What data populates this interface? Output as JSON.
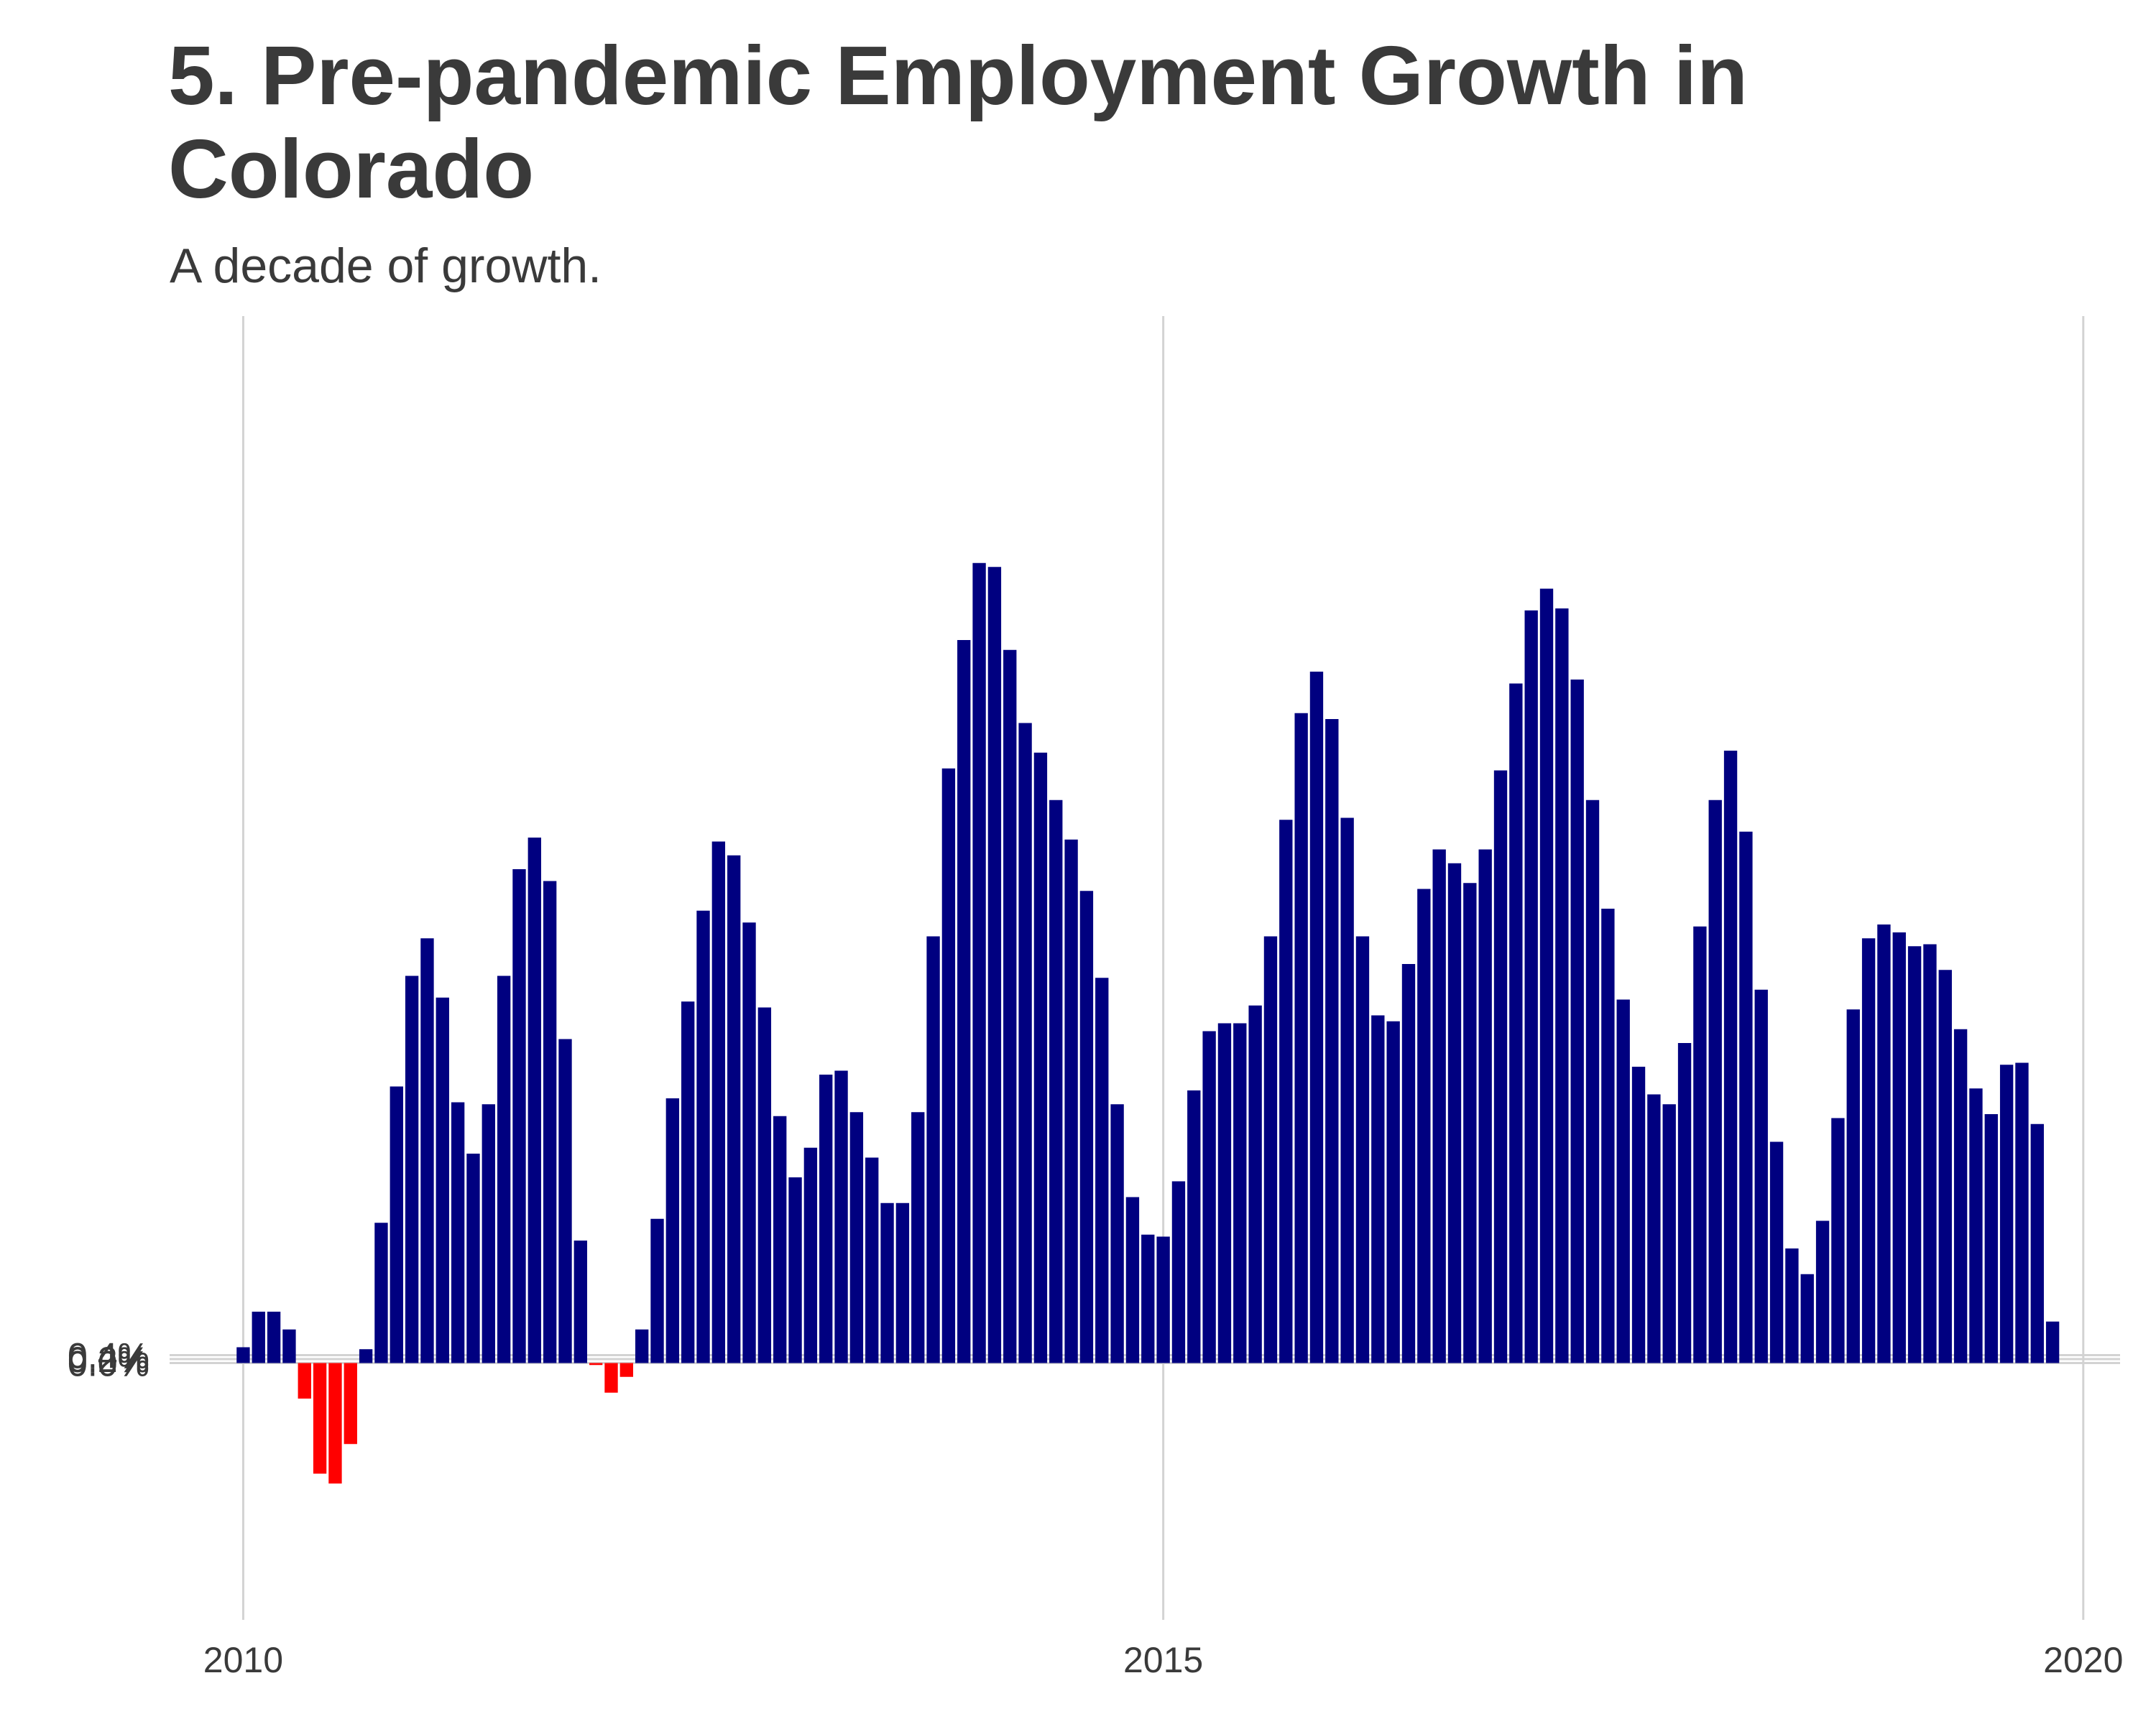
{
  "chart_data": {
    "type": "bar",
    "title": "5. Pre-pandemic Employment Growth in Colorado",
    "subtitle": "A decade of growth.",
    "xlabel": "",
    "ylabel": "",
    "x_ticks": [
      "2010",
      "2015",
      "2020"
    ],
    "y_ticks": [
      "0.0%",
      "0.2%",
      "0.4%"
    ],
    "ylim": [
      -0.13,
      0.53
    ],
    "xlim": [
      2009.6,
      2020.2
    ],
    "grid": true,
    "colors": {
      "positive": "#000080",
      "negative": "#ff0000",
      "grid": "#d3d3d3",
      "text": "#3a3a3a"
    },
    "x_start": "2010-01",
    "values": [
      0.008,
      0.026,
      0.026,
      0.017,
      -0.018,
      -0.056,
      -0.061,
      -0.041,
      0.007,
      0.071,
      0.14,
      0.196,
      0.215,
      0.185,
      0.132,
      0.106,
      0.131,
      0.196,
      0.25,
      0.266,
      0.244,
      0.164,
      0.062,
      -0.001,
      -0.015,
      -0.007,
      0.017,
      0.073,
      0.134,
      0.183,
      0.229,
      0.264,
      0.257,
      0.223,
      0.18,
      0.125,
      0.094,
      0.109,
      0.146,
      0.148,
      0.127,
      0.104,
      0.081,
      0.081,
      0.127,
      0.216,
      0.301,
      0.366,
      0.405,
      0.403,
      0.361,
      0.324,
      0.309,
      0.285,
      0.265,
      0.239,
      0.195,
      0.131,
      0.084,
      0.065,
      0.064,
      0.092,
      0.138,
      0.168,
      0.172,
      0.172,
      0.181,
      0.216,
      0.275,
      0.329,
      0.35,
      0.326,
      0.276,
      0.216,
      0.176,
      0.173,
      0.202,
      0.24,
      0.26,
      0.253,
      0.243,
      0.26,
      0.3,
      0.344,
      0.381,
      0.392,
      0.382,
      0.346,
      0.285,
      0.23,
      0.184,
      0.15,
      0.136,
      0.131,
      0.162,
      0.221,
      0.285,
      0.31,
      0.269,
      0.189,
      0.112,
      0.058,
      0.045,
      0.072,
      0.124,
      0.179,
      0.215,
      0.222,
      0.218,
      0.211,
      0.212,
      0.199,
      0.169,
      0.139,
      0.126,
      0.151,
      0.152,
      0.121,
      0.021
    ]
  }
}
